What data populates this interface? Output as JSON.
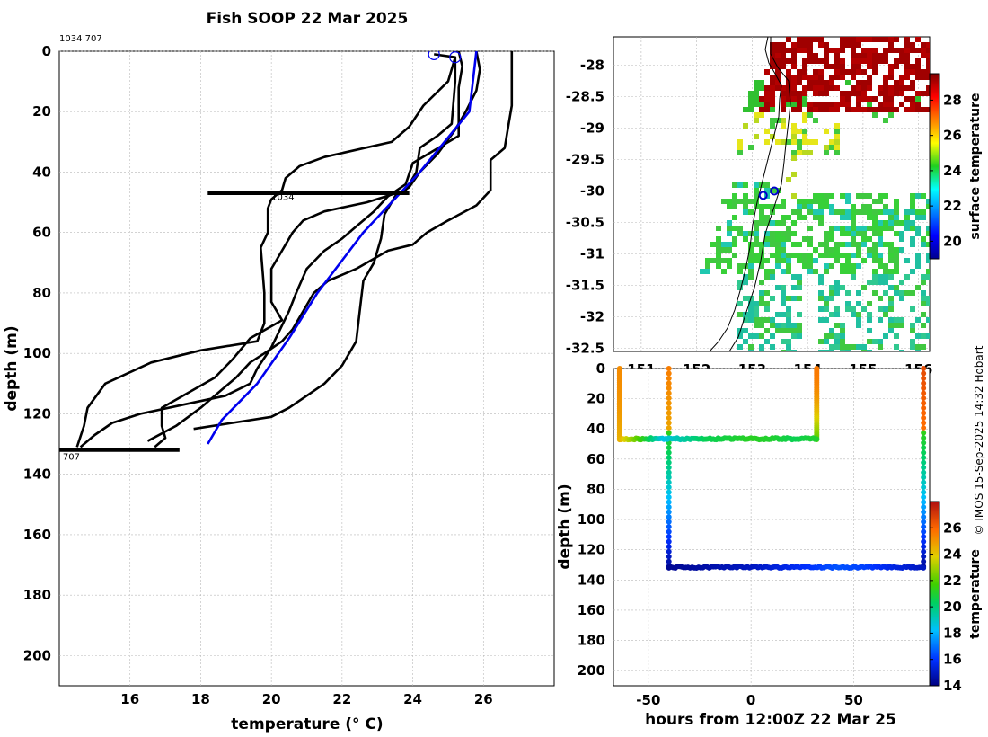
{
  "title": "Fish SOOP 22 Mar 2025",
  "credit": "© IMOS 15-Sep-2025 14:32 Hobart",
  "profile_ids": "1034 707",
  "chart_data": [
    {
      "type": "line",
      "name": "temperature-depth-profiles",
      "xlabel": "temperature (° C)",
      "ylabel": "depth (m)",
      "xlim": [
        14,
        28
      ],
      "ylim": [
        210,
        0
      ],
      "xticks": [
        16,
        18,
        20,
        22,
        24,
        26
      ],
      "yticks": [
        0,
        20,
        40,
        60,
        80,
        100,
        120,
        140,
        160,
        180,
        200
      ],
      "grid": true,
      "annotations": [
        {
          "text": "1034",
          "x": 20.0,
          "y": 48
        },
        {
          "text": "707",
          "x": 14.1,
          "y": 134
        }
      ],
      "series": [
        {
          "color": "#000000",
          "points": [
            [
              24.6,
              1
            ],
            [
              25.2,
              2
            ],
            [
              25.0,
              10
            ],
            [
              24.3,
              18
            ],
            [
              23.9,
              25
            ],
            [
              23.4,
              30
            ],
            [
              21.5,
              35
            ],
            [
              20.8,
              38
            ],
            [
              20.4,
              42
            ],
            [
              20.3,
              46
            ],
            [
              20.0,
              49
            ],
            [
              19.9,
              52
            ],
            [
              19.9,
              60
            ],
            [
              19.7,
              65
            ],
            [
              19.8,
              80
            ],
            [
              19.8,
              90
            ],
            [
              19.6,
              96
            ],
            [
              18.0,
              99
            ],
            [
              16.6,
              103
            ],
            [
              15.3,
              110
            ],
            [
              14.8,
              118
            ],
            [
              14.7,
              124
            ],
            [
              14.5,
              131
            ]
          ]
        },
        {
          "color": "#000000",
          "points": [
            [
              25.2,
              2
            ],
            [
              25.2,
              10
            ],
            [
              25.1,
              24
            ],
            [
              24.7,
              28
            ],
            [
              24.2,
              32
            ],
            [
              24.1,
              40
            ],
            [
              23.8,
              46
            ],
            [
              22.7,
              50
            ],
            [
              21.5,
              53
            ],
            [
              20.9,
              56
            ],
            [
              20.6,
              60
            ],
            [
              20.3,
              66
            ],
            [
              20.0,
              72
            ],
            [
              20.0,
              83
            ],
            [
              20.3,
              89
            ],
            [
              19.4,
              95
            ],
            [
              18.9,
              102
            ],
            [
              18.4,
              108
            ],
            [
              17.5,
              114
            ],
            [
              16.9,
              118
            ],
            [
              16.9,
              124
            ],
            [
              17.0,
              128
            ],
            [
              16.7,
              131
            ]
          ]
        },
        {
          "color": "#000000",
          "points": [
            [
              25.3,
              0
            ],
            [
              25.4,
              5
            ],
            [
              25.3,
              12
            ],
            [
              25.3,
              28
            ],
            [
              24.0,
              37
            ],
            [
              23.8,
              44
            ],
            [
              23.3,
              48
            ],
            [
              22.9,
              53
            ],
            [
              22.4,
              58
            ],
            [
              22.0,
              62
            ],
            [
              21.5,
              66
            ],
            [
              21.0,
              72
            ],
            [
              20.7,
              80
            ],
            [
              20.5,
              86
            ],
            [
              20.0,
              98
            ],
            [
              19.6,
              105
            ],
            [
              19.4,
              110
            ],
            [
              18.7,
              114
            ],
            [
              17.5,
              117
            ],
            [
              16.3,
              120
            ],
            [
              15.5,
              123
            ],
            [
              15.0,
              127
            ],
            [
              14.6,
              131
            ]
          ]
        },
        {
          "color": "#000000",
          "points": [
            [
              25.8,
              0
            ],
            [
              25.9,
              6
            ],
            [
              25.8,
              13
            ],
            [
              25.5,
              20
            ],
            [
              25.2,
              26
            ],
            [
              24.7,
              34
            ],
            [
              24.2,
              40
            ],
            [
              23.9,
              45
            ],
            [
              23.5,
              48
            ],
            [
              23.2,
              54
            ],
            [
              23.1,
              62
            ],
            [
              22.9,
              70
            ],
            [
              22.6,
              76
            ],
            [
              22.5,
              86
            ],
            [
              22.4,
              96
            ],
            [
              22.0,
              104
            ],
            [
              21.5,
              110
            ],
            [
              21.0,
              114
            ],
            [
              20.5,
              118
            ],
            [
              20.0,
              121
            ],
            [
              18.9,
              123
            ],
            [
              17.8,
              125
            ]
          ]
        },
        {
          "color": "#000000",
          "points": [
            [
              26.8,
              0
            ],
            [
              26.8,
              10
            ],
            [
              26.8,
              18
            ],
            [
              26.7,
              25
            ],
            [
              26.6,
              32
            ],
            [
              26.2,
              36
            ],
            [
              26.2,
              46
            ],
            [
              25.8,
              51
            ],
            [
              25.0,
              56
            ],
            [
              24.4,
              60
            ],
            [
              24.0,
              64
            ],
            [
              23.3,
              66
            ],
            [
              22.4,
              72
            ],
            [
              21.6,
              76
            ],
            [
              21.2,
              80
            ],
            [
              20.9,
              86
            ],
            [
              20.6,
              92
            ],
            [
              20.3,
              96
            ],
            [
              19.8,
              100
            ],
            [
              19.4,
              103
            ],
            [
              19.0,
              108
            ],
            [
              18.6,
              112
            ],
            [
              18.0,
              118
            ],
            [
              17.3,
              124
            ],
            [
              16.5,
              129
            ]
          ]
        },
        {
          "color": "#0000ee",
          "points": [
            [
              25.8,
              0
            ],
            [
              25.7,
              10
            ],
            [
              25.6,
              20
            ],
            [
              24.2,
              40
            ],
            [
              22.6,
              60
            ],
            [
              21.3,
              80
            ],
            [
              20.5,
              95
            ],
            [
              19.6,
              110
            ],
            [
              18.6,
              122
            ],
            [
              18.2,
              130
            ]
          ]
        }
      ],
      "flats": [
        {
          "color": "#000000",
          "x": [
            18.2,
            23.9
          ],
          "y": 47
        },
        {
          "color": "#000000",
          "x": [
            14.0,
            17.4
          ],
          "y": 132
        }
      ],
      "markers": [
        {
          "x": 24.6,
          "y": 1,
          "color": "#0000ee"
        },
        {
          "x": 25.2,
          "y": 2,
          "color": "#0000ee"
        }
      ]
    },
    {
      "type": "heatmap",
      "name": "surface-temperature-map",
      "xlim": [
        150.5,
        156.2
      ],
      "ylim": [
        -32.55,
        -27.55
      ],
      "xticks": [
        151,
        152,
        153,
        154,
        155,
        156
      ],
      "yticks": [
        -28,
        -28.5,
        -29,
        -29.5,
        -30,
        -30.5,
        -31,
        -31.5,
        -32,
        -32.5
      ],
      "colorbar": {
        "label": "surface temperature",
        "range": [
          19,
          29.5
        ],
        "ticks": [
          20,
          22,
          24,
          26,
          28
        ]
      },
      "positions": [
        {
          "lon": 153.4,
          "lat": -30.0
        },
        {
          "lon": 153.2,
          "lat": -30.07
        }
      ]
    },
    {
      "type": "scatter",
      "name": "depth-time-section",
      "xlabel": "hours from 12:00Z 22 Mar 25",
      "ylabel": "depth (m)",
      "xlim": [
        -67,
        87
      ],
      "ylim": [
        210,
        0
      ],
      "xticks": [
        -50,
        0,
        50
      ],
      "yticks": [
        0,
        20,
        40,
        60,
        80,
        100,
        120,
        140,
        160,
        180,
        200
      ],
      "colorbar": {
        "label": "temperature",
        "range": [
          14,
          28
        ],
        "ticks": [
          14,
          16,
          18,
          20,
          22,
          24,
          26
        ]
      },
      "profiles": [
        {
          "x": -64,
          "surfT": 25.2,
          "bottom": 46,
          "bottomT": 24.5
        },
        {
          "x": -40,
          "surfT": 25.5,
          "bottom": 131,
          "bottomT": 14.5
        },
        {
          "x": 32,
          "surfT": 25.6,
          "bottom": 47,
          "bottomT": 22.0
        },
        {
          "x": 84,
          "surfT": 26.6,
          "bottom": 131,
          "bottomT": 15.2
        }
      ],
      "tows": [
        {
          "x": [
            -64,
            32
          ],
          "depth": 46.5,
          "temps": [
            24.5,
            21.5,
            18.5,
            19.5,
            20.5,
            20.8,
            21.2,
            21.0,
            20.5,
            21.0
          ]
        },
        {
          "x": [
            -40,
            84
          ],
          "depth": 131.5,
          "temps": [
            14.3,
            14.5,
            14.8,
            15.0,
            15.5,
            16.0,
            16.5,
            16.2,
            15.5,
            15.0
          ]
        }
      ]
    }
  ]
}
